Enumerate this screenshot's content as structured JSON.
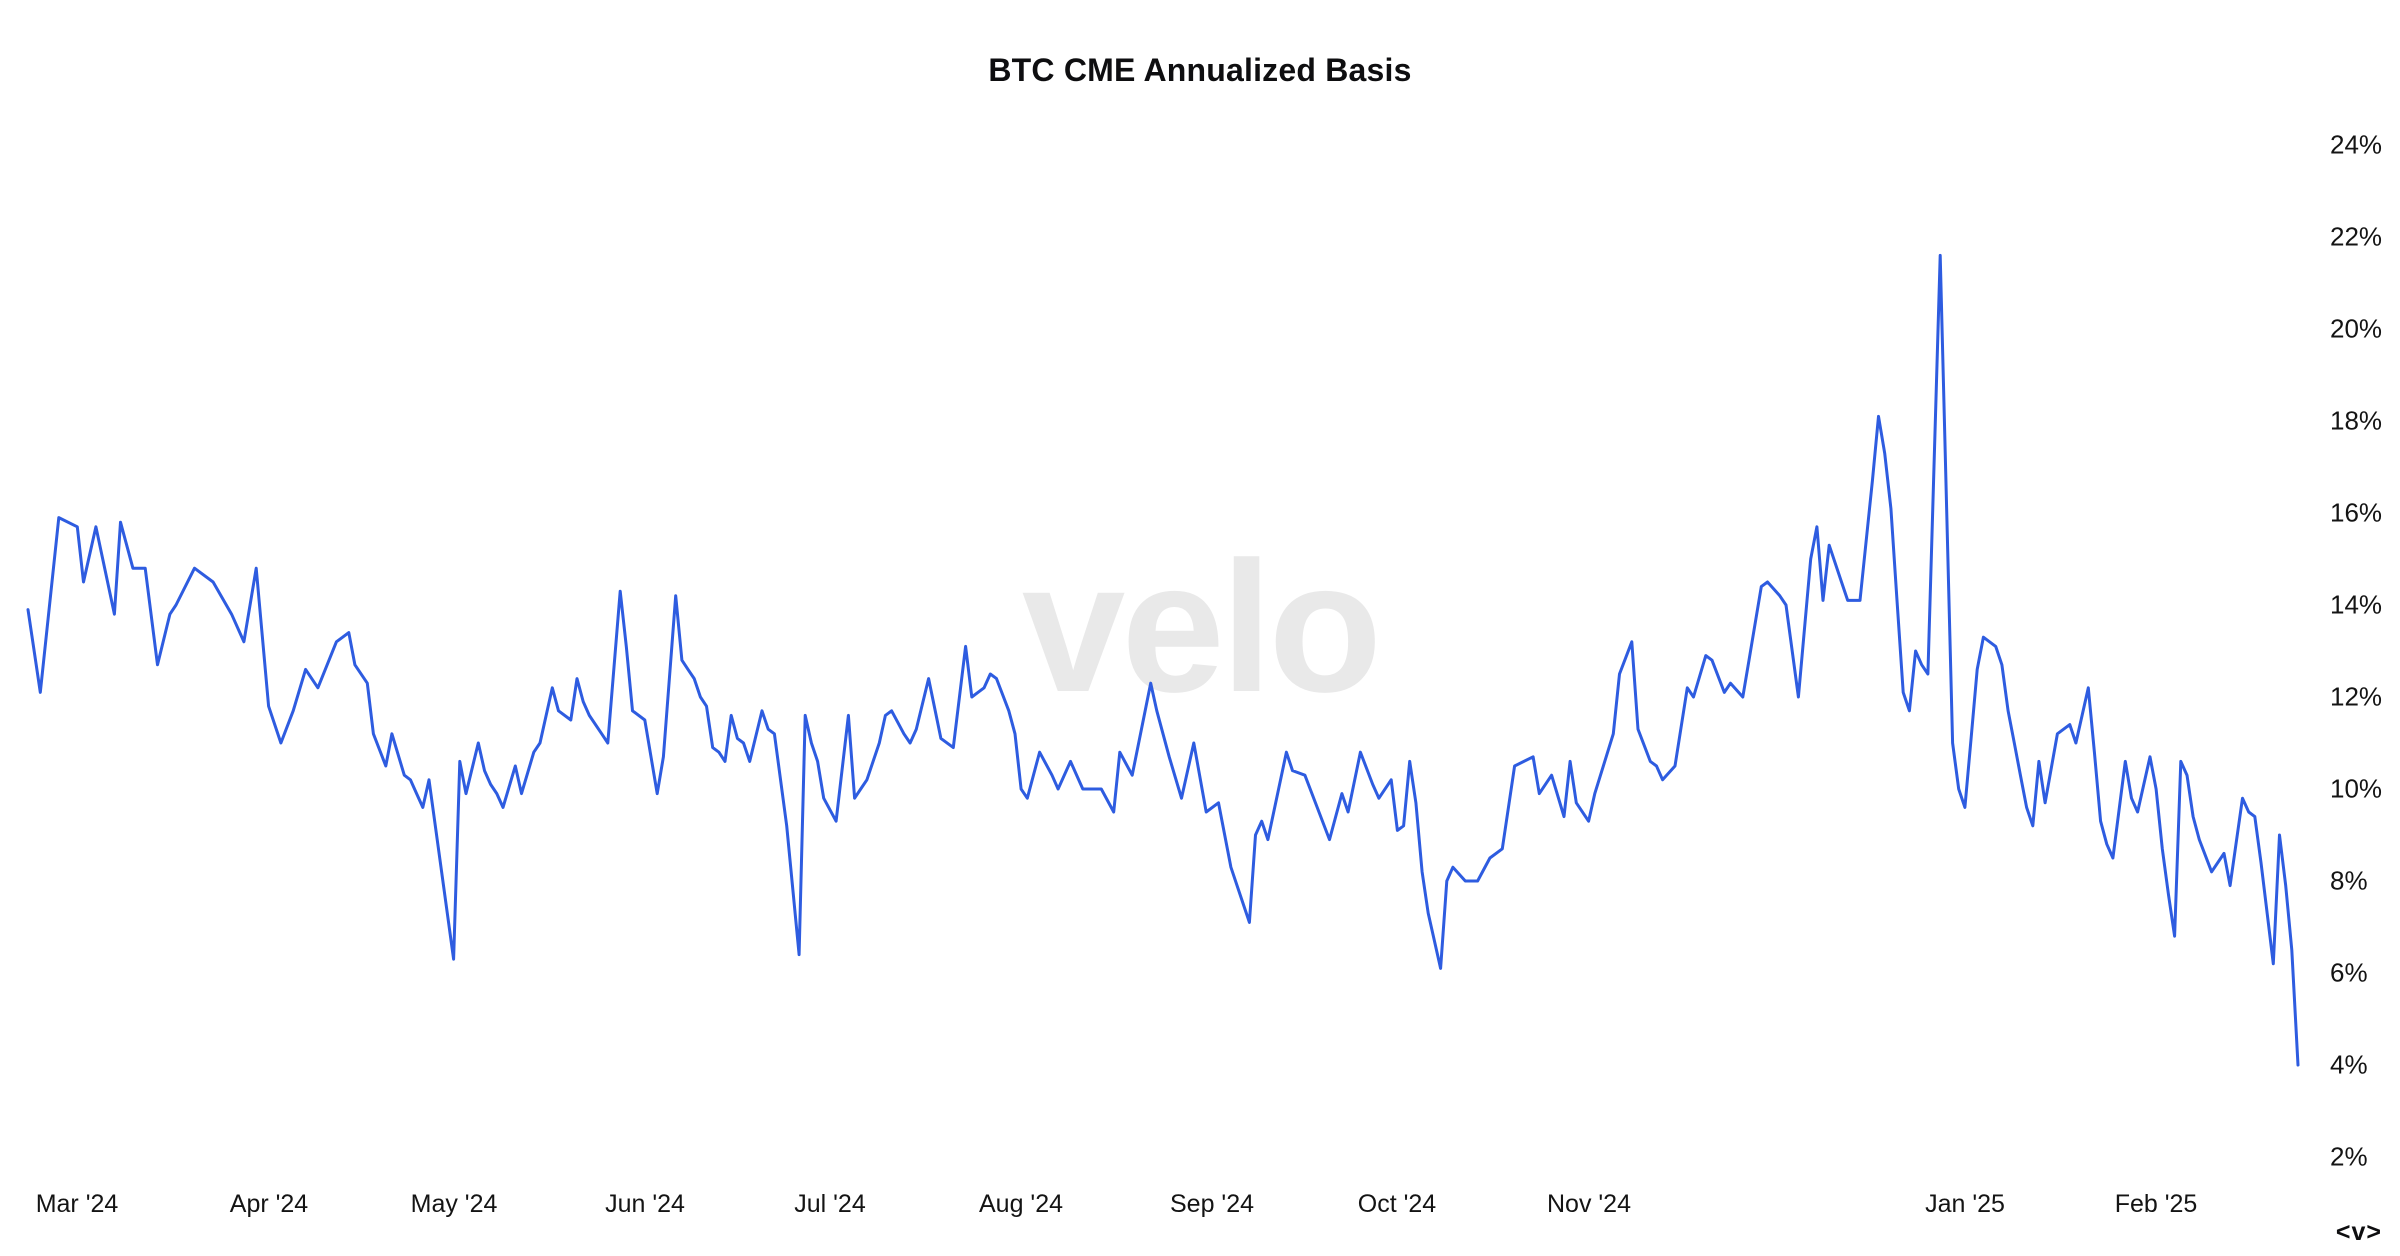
{
  "branding": {
    "watermark": "velo",
    "logo_mark": "<v>"
  },
  "colors": {
    "line": "#2e5ce0",
    "watermark": "#e9e9e9",
    "text": "#141414",
    "background": "#ffffff"
  },
  "chart_data": {
    "type": "line",
    "title": "BTC CME Annualized Basis",
    "series_name": "BTC CME Annualized Basis",
    "unit": "%",
    "xlabel": "",
    "ylabel": "",
    "ylim": [
      2,
      24
    ],
    "grid": false,
    "legend": false,
    "y_axis": {
      "side": "right",
      "min": 2,
      "max": 24,
      "step": 2,
      "suffix": "%"
    },
    "x_axis": {
      "ticks": [
        {
          "label": "Mar '24",
          "date": "2024-03-01"
        },
        {
          "label": "Apr '24",
          "date": "2024-04-01"
        },
        {
          "label": "May '24",
          "date": "2024-05-01"
        },
        {
          "label": "Jun '24",
          "date": "2024-06-01"
        },
        {
          "label": "Jul '24",
          "date": "2024-07-01"
        },
        {
          "label": "Aug '24",
          "date": "2024-08-01"
        },
        {
          "label": "Sep '24",
          "date": "2024-09-01"
        },
        {
          "label": "Oct '24",
          "date": "2024-10-01"
        },
        {
          "label": "Nov '24",
          "date": "2024-11-01"
        },
        {
          "label": "Jan '25",
          "date": "2025-01-01"
        },
        {
          "label": "Feb '25",
          "date": "2025-02-01"
        }
      ]
    },
    "points": [
      [
        "2024-02-22",
        13.9
      ],
      [
        "2024-02-24",
        12.1
      ],
      [
        "2024-02-27",
        15.9
      ],
      [
        "2024-03-01",
        15.7
      ],
      [
        "2024-03-02",
        14.5
      ],
      [
        "2024-03-04",
        15.7
      ],
      [
        "2024-03-07",
        13.8
      ],
      [
        "2024-03-08",
        15.8
      ],
      [
        "2024-03-10",
        14.8
      ],
      [
        "2024-03-12",
        14.8
      ],
      [
        "2024-03-14",
        12.7
      ],
      [
        "2024-03-16",
        13.8
      ],
      [
        "2024-03-17",
        14.0
      ],
      [
        "2024-03-20",
        14.8
      ],
      [
        "2024-03-23",
        14.5
      ],
      [
        "2024-03-26",
        13.8
      ],
      [
        "2024-03-28",
        13.2
      ],
      [
        "2024-03-30",
        14.8
      ],
      [
        "2024-04-01",
        11.8
      ],
      [
        "2024-04-03",
        11.0
      ],
      [
        "2024-04-05",
        11.7
      ],
      [
        "2024-04-07",
        12.6
      ],
      [
        "2024-04-09",
        12.2
      ],
      [
        "2024-04-12",
        13.2
      ],
      [
        "2024-04-14",
        13.4
      ],
      [
        "2024-04-15",
        12.7
      ],
      [
        "2024-04-17",
        12.3
      ],
      [
        "2024-04-18",
        11.2
      ],
      [
        "2024-04-20",
        10.5
      ],
      [
        "2024-04-21",
        11.2
      ],
      [
        "2024-04-23",
        10.3
      ],
      [
        "2024-04-24",
        10.2
      ],
      [
        "2024-04-25",
        9.9
      ],
      [
        "2024-04-26",
        9.6
      ],
      [
        "2024-04-27",
        10.2
      ],
      [
        "2024-05-01",
        6.3
      ],
      [
        "2024-05-02",
        10.6
      ],
      [
        "2024-05-03",
        9.9
      ],
      [
        "2024-05-05",
        11.0
      ],
      [
        "2024-05-06",
        10.4
      ],
      [
        "2024-05-07",
        10.1
      ],
      [
        "2024-05-08",
        9.9
      ],
      [
        "2024-05-09",
        9.6
      ],
      [
        "2024-05-11",
        10.5
      ],
      [
        "2024-05-12",
        9.9
      ],
      [
        "2024-05-14",
        10.8
      ],
      [
        "2024-05-15",
        11.0
      ],
      [
        "2024-05-17",
        12.2
      ],
      [
        "2024-05-18",
        11.7
      ],
      [
        "2024-05-20",
        11.5
      ],
      [
        "2024-05-21",
        12.4
      ],
      [
        "2024-05-22",
        11.9
      ],
      [
        "2024-05-23",
        11.6
      ],
      [
        "2024-05-25",
        11.2
      ],
      [
        "2024-05-26",
        11.0
      ],
      [
        "2024-05-28",
        14.3
      ],
      [
        "2024-05-29",
        13.1
      ],
      [
        "2024-05-30",
        11.7
      ],
      [
        "2024-06-01",
        11.5
      ],
      [
        "2024-06-03",
        9.9
      ],
      [
        "2024-06-04",
        10.7
      ],
      [
        "2024-06-06",
        14.2
      ],
      [
        "2024-06-07",
        12.8
      ],
      [
        "2024-06-08",
        12.6
      ],
      [
        "2024-06-09",
        12.4
      ],
      [
        "2024-06-10",
        12.0
      ],
      [
        "2024-06-11",
        11.8
      ],
      [
        "2024-06-12",
        10.9
      ],
      [
        "2024-06-13",
        10.8
      ],
      [
        "2024-06-14",
        10.6
      ],
      [
        "2024-06-15",
        11.6
      ],
      [
        "2024-06-16",
        11.1
      ],
      [
        "2024-06-17",
        11.0
      ],
      [
        "2024-06-18",
        10.6
      ],
      [
        "2024-06-20",
        11.7
      ],
      [
        "2024-06-21",
        11.3
      ],
      [
        "2024-06-22",
        11.2
      ],
      [
        "2024-06-24",
        9.2
      ],
      [
        "2024-06-26",
        6.4
      ],
      [
        "2024-06-27",
        11.6
      ],
      [
        "2024-06-28",
        11.0
      ],
      [
        "2024-06-29",
        10.6
      ],
      [
        "2024-06-30",
        9.8
      ],
      [
        "2024-07-02",
        9.3
      ],
      [
        "2024-07-04",
        11.6
      ],
      [
        "2024-07-05",
        9.8
      ],
      [
        "2024-07-06",
        10.0
      ],
      [
        "2024-07-07",
        10.2
      ],
      [
        "2024-07-09",
        11.0
      ],
      [
        "2024-07-10",
        11.6
      ],
      [
        "2024-07-11",
        11.7
      ],
      [
        "2024-07-13",
        11.2
      ],
      [
        "2024-07-14",
        11.0
      ],
      [
        "2024-07-15",
        11.3
      ],
      [
        "2024-07-17",
        12.4
      ],
      [
        "2024-07-19",
        11.1
      ],
      [
        "2024-07-21",
        10.9
      ],
      [
        "2024-07-23",
        13.1
      ],
      [
        "2024-07-24",
        12.0
      ],
      [
        "2024-07-25",
        12.1
      ],
      [
        "2024-07-26",
        12.2
      ],
      [
        "2024-07-27",
        12.5
      ],
      [
        "2024-07-28",
        12.4
      ],
      [
        "2024-07-30",
        11.7
      ],
      [
        "2024-07-31",
        11.2
      ],
      [
        "2024-08-01",
        10.0
      ],
      [
        "2024-08-02",
        9.8
      ],
      [
        "2024-08-04",
        10.8
      ],
      [
        "2024-08-06",
        10.3
      ],
      [
        "2024-08-07",
        10.0
      ],
      [
        "2024-08-09",
        10.6
      ],
      [
        "2024-08-11",
        10.0
      ],
      [
        "2024-08-14",
        10.0
      ],
      [
        "2024-08-16",
        9.5
      ],
      [
        "2024-08-17",
        10.8
      ],
      [
        "2024-08-19",
        10.3
      ],
      [
        "2024-08-22",
        12.3
      ],
      [
        "2024-08-23",
        11.7
      ],
      [
        "2024-08-25",
        10.7
      ],
      [
        "2024-08-27",
        9.8
      ],
      [
        "2024-08-29",
        11.0
      ],
      [
        "2024-08-31",
        9.5
      ],
      [
        "2024-09-02",
        9.7
      ],
      [
        "2024-09-04",
        8.3
      ],
      [
        "2024-09-07",
        7.1
      ],
      [
        "2024-09-08",
        9.0
      ],
      [
        "2024-09-09",
        9.3
      ],
      [
        "2024-09-10",
        8.9
      ],
      [
        "2024-09-13",
        10.8
      ],
      [
        "2024-09-14",
        10.4
      ],
      [
        "2024-09-16",
        10.3
      ],
      [
        "2024-09-18",
        9.6
      ],
      [
        "2024-09-20",
        8.9
      ],
      [
        "2024-09-22",
        9.9
      ],
      [
        "2024-09-23",
        9.5
      ],
      [
        "2024-09-25",
        10.8
      ],
      [
        "2024-09-27",
        10.1
      ],
      [
        "2024-09-28",
        9.8
      ],
      [
        "2024-09-30",
        10.2
      ],
      [
        "2024-10-01",
        9.1
      ],
      [
        "2024-10-02",
        9.2
      ],
      [
        "2024-10-03",
        10.6
      ],
      [
        "2024-10-04",
        9.7
      ],
      [
        "2024-10-05",
        8.2
      ],
      [
        "2024-10-06",
        7.3
      ],
      [
        "2024-10-08",
        6.1
      ],
      [
        "2024-10-09",
        8.0
      ],
      [
        "2024-10-10",
        8.3
      ],
      [
        "2024-10-12",
        8.0
      ],
      [
        "2024-10-14",
        8.0
      ],
      [
        "2024-10-16",
        8.5
      ],
      [
        "2024-10-18",
        8.7
      ],
      [
        "2024-10-20",
        10.5
      ],
      [
        "2024-10-23",
        10.7
      ],
      [
        "2024-10-24",
        9.9
      ],
      [
        "2024-10-26",
        10.3
      ],
      [
        "2024-10-28",
        9.4
      ],
      [
        "2024-10-29",
        10.6
      ],
      [
        "2024-10-30",
        9.7
      ],
      [
        "2024-11-01",
        9.3
      ],
      [
        "2024-11-02",
        9.9
      ],
      [
        "2024-11-05",
        11.2
      ],
      [
        "2024-11-06",
        12.5
      ],
      [
        "2024-11-08",
        13.2
      ],
      [
        "2024-11-09",
        11.3
      ],
      [
        "2024-11-11",
        10.6
      ],
      [
        "2024-11-12",
        10.5
      ],
      [
        "2024-11-13",
        10.2
      ],
      [
        "2024-11-15",
        10.5
      ],
      [
        "2024-11-17",
        12.2
      ],
      [
        "2024-11-18",
        12.0
      ],
      [
        "2024-11-20",
        12.9
      ],
      [
        "2024-11-21",
        12.8
      ],
      [
        "2024-11-23",
        12.1
      ],
      [
        "2024-11-24",
        12.3
      ],
      [
        "2024-11-26",
        12.0
      ],
      [
        "2024-11-27",
        12.8
      ],
      [
        "2024-11-29",
        14.4
      ],
      [
        "2024-11-30",
        14.5
      ],
      [
        "2024-12-02",
        14.2
      ],
      [
        "2024-12-03",
        14.0
      ],
      [
        "2024-12-05",
        12.0
      ],
      [
        "2024-12-07",
        15.0
      ],
      [
        "2024-12-08",
        15.7
      ],
      [
        "2024-12-09",
        14.1
      ],
      [
        "2024-12-10",
        15.3
      ],
      [
        "2024-12-12",
        14.5
      ],
      [
        "2024-12-13",
        14.1
      ],
      [
        "2024-12-15",
        14.1
      ],
      [
        "2024-12-17",
        16.7
      ],
      [
        "2024-12-18",
        18.1
      ],
      [
        "2024-12-19",
        17.3
      ],
      [
        "2024-12-20",
        16.1
      ],
      [
        "2024-12-21",
        14.1
      ],
      [
        "2024-12-22",
        12.1
      ],
      [
        "2024-12-23",
        11.7
      ],
      [
        "2024-12-24",
        13.0
      ],
      [
        "2024-12-25",
        12.7
      ],
      [
        "2024-12-26",
        12.5
      ],
      [
        "2024-12-28",
        21.6
      ],
      [
        "2024-12-30",
        11.0
      ],
      [
        "2024-12-31",
        10.0
      ],
      [
        "2025-01-01",
        9.6
      ],
      [
        "2025-01-02",
        11.1
      ],
      [
        "2025-01-03",
        12.6
      ],
      [
        "2025-01-04",
        13.3
      ],
      [
        "2025-01-06",
        13.1
      ],
      [
        "2025-01-07",
        12.7
      ],
      [
        "2025-01-08",
        11.7
      ],
      [
        "2025-01-09",
        11.0
      ],
      [
        "2025-01-10",
        10.3
      ],
      [
        "2025-01-11",
        9.6
      ],
      [
        "2025-01-12",
        9.2
      ],
      [
        "2025-01-13",
        10.6
      ],
      [
        "2025-01-14",
        9.7
      ],
      [
        "2025-01-16",
        11.2
      ],
      [
        "2025-01-18",
        11.4
      ],
      [
        "2025-01-19",
        11.0
      ],
      [
        "2025-01-21",
        12.2
      ],
      [
        "2025-01-22",
        10.8
      ],
      [
        "2025-01-23",
        9.3
      ],
      [
        "2025-01-24",
        8.8
      ],
      [
        "2025-01-25",
        8.5
      ],
      [
        "2025-01-27",
        10.6
      ],
      [
        "2025-01-28",
        9.8
      ],
      [
        "2025-01-29",
        9.5
      ],
      [
        "2025-01-31",
        10.7
      ],
      [
        "2025-02-01",
        10.0
      ],
      [
        "2025-02-02",
        8.7
      ],
      [
        "2025-02-03",
        7.7
      ],
      [
        "2025-02-04",
        6.8
      ],
      [
        "2025-02-05",
        10.6
      ],
      [
        "2025-02-06",
        10.3
      ],
      [
        "2025-02-07",
        9.4
      ],
      [
        "2025-02-08",
        8.9
      ],
      [
        "2025-02-10",
        8.2
      ],
      [
        "2025-02-12",
        8.6
      ],
      [
        "2025-02-13",
        7.9
      ],
      [
        "2025-02-15",
        9.8
      ],
      [
        "2025-02-16",
        9.5
      ],
      [
        "2025-02-17",
        9.4
      ],
      [
        "2025-02-18",
        8.4
      ],
      [
        "2025-02-20",
        6.2
      ],
      [
        "2025-02-21",
        9.0
      ],
      [
        "2025-02-22",
        7.9
      ],
      [
        "2025-02-23",
        6.5
      ],
      [
        "2025-02-24",
        4.0
      ]
    ]
  }
}
